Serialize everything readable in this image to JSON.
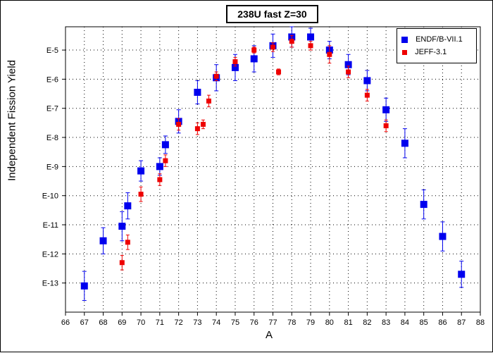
{
  "chart_data": {
    "type": "scatter",
    "title": "238U fast Z=30",
    "xlabel": "A",
    "ylabel": "Independent Fission Yield",
    "xlim": [
      66,
      88
    ],
    "x_ticks": [
      "66",
      "67",
      "68",
      "69",
      "70",
      "71",
      "72",
      "73",
      "74",
      "75",
      "76",
      "77",
      "78",
      "79",
      "80",
      "81",
      "82",
      "83",
      "84",
      "85",
      "86",
      "87",
      "88"
    ],
    "y_scale": "log",
    "ylim_exp": [
      -14,
      -4.2
    ],
    "y_ticks": [
      {
        "label": "E-5",
        "exp": -5
      },
      {
        "label": "E-6",
        "exp": -6
      },
      {
        "label": "E-7",
        "exp": -7
      },
      {
        "label": "E-8",
        "exp": -8
      },
      {
        "label": "E-9",
        "exp": -9
      },
      {
        "label": "E-10",
        "exp": -10
      },
      {
        "label": "E-11",
        "exp": -11
      },
      {
        "label": "E-12",
        "exp": -12
      },
      {
        "label": "E-13",
        "exp": -13
      }
    ],
    "grid": true,
    "legend_position": "top-right",
    "series": [
      {
        "name": "ENDF/B-VII.1",
        "color": "#0000ee",
        "marker": "square-large",
        "points": [
          {
            "x": 67,
            "y_exp": -13.1,
            "err": 0.5
          },
          {
            "x": 68,
            "y_exp": -11.55,
            "err": 0.45
          },
          {
            "x": 69,
            "y_exp": -11.05,
            "err": 0.5
          },
          {
            "x": 69.3,
            "y_exp": -10.35,
            "err": 0.45
          },
          {
            "x": 70,
            "y_exp": -9.15,
            "err": 0.35
          },
          {
            "x": 71,
            "y_exp": -9.0,
            "err": 0.3
          },
          {
            "x": 71.3,
            "y_exp": -8.25,
            "err": 0.3
          },
          {
            "x": 72,
            "y_exp": -7.45,
            "err": 0.4
          },
          {
            "x": 73,
            "y_exp": -6.45,
            "err": 0.4
          },
          {
            "x": 74,
            "y_exp": -5.95,
            "err": 0.45
          },
          {
            "x": 75,
            "y_exp": -5.6,
            "err": 0.45
          },
          {
            "x": 76,
            "y_exp": -5.3,
            "err": 0.45
          },
          {
            "x": 77,
            "y_exp": -4.85,
            "err": 0.4
          },
          {
            "x": 78,
            "y_exp": -4.55,
            "err": 0.35
          },
          {
            "x": 79,
            "y_exp": -4.55,
            "err": 0.3
          },
          {
            "x": 80,
            "y_exp": -5.0,
            "err": 0.3
          },
          {
            "x": 81,
            "y_exp": -5.5,
            "err": 0.35
          },
          {
            "x": 82,
            "y_exp": -6.05,
            "err": 0.35
          },
          {
            "x": 83,
            "y_exp": -7.05,
            "err": 0.4
          },
          {
            "x": 84,
            "y_exp": -8.2,
            "err": 0.5
          },
          {
            "x": 85,
            "y_exp": -10.3,
            "err": 0.5
          },
          {
            "x": 86,
            "y_exp": -11.4,
            "err": 0.5
          },
          {
            "x": 87,
            "y_exp": -12.7,
            "err": 0.45
          }
        ]
      },
      {
        "name": "JEFF-3.1",
        "color": "#ee0000",
        "marker": "square-small",
        "points": [
          {
            "x": 69,
            "y_exp": -12.3,
            "err": 0.25
          },
          {
            "x": 69.3,
            "y_exp": -11.6,
            "err": 0.25
          },
          {
            "x": 70,
            "y_exp": -9.95,
            "err": 0.25
          },
          {
            "x": 71,
            "y_exp": -9.45,
            "err": 0.2
          },
          {
            "x": 71.3,
            "y_exp": -8.8,
            "err": 0.2
          },
          {
            "x": 72,
            "y_exp": -7.55,
            "err": 0.2
          },
          {
            "x": 73,
            "y_exp": -7.7,
            "err": 0.2
          },
          {
            "x": 73.3,
            "y_exp": -7.55,
            "err": 0.15
          },
          {
            "x": 73.6,
            "y_exp": -6.75,
            "err": 0.2
          },
          {
            "x": 74,
            "y_exp": -5.9,
            "err": 0.15
          },
          {
            "x": 75,
            "y_exp": -5.4,
            "err": 0.15
          },
          {
            "x": 76,
            "y_exp": -5.0,
            "err": 0.1
          },
          {
            "x": 77,
            "y_exp": -4.9,
            "err": 0.15
          },
          {
            "x": 77.3,
            "y_exp": -5.75,
            "err": 0.1
          },
          {
            "x": 78,
            "y_exp": -4.7,
            "err": 0.2
          },
          {
            "x": 79,
            "y_exp": -4.85,
            "err": 0.15
          },
          {
            "x": 80,
            "y_exp": -5.15,
            "err": 0.3
          },
          {
            "x": 81,
            "y_exp": -5.75,
            "err": 0.2
          },
          {
            "x": 82,
            "y_exp": -6.55,
            "err": 0.2
          },
          {
            "x": 83,
            "y_exp": -7.6,
            "err": 0.2
          }
        ]
      }
    ]
  }
}
